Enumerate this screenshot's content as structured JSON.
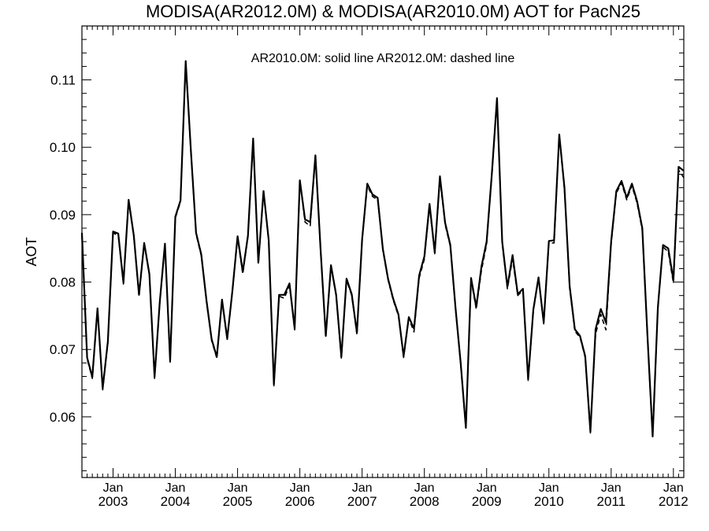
{
  "chart_data": {
    "type": "line",
    "title": "MODISA(AR2012.0M) & MODISA(AR2010.0M)  AOT for PacN25",
    "annotation": "AR2010.0M: solid line   AR2012.0M: dashed line",
    "xlabel": "",
    "ylabel": "AOT",
    "xlim": [
      "2002-07",
      "2012-03"
    ],
    "ylim": [
      0.051,
      0.118
    ],
    "yticks": [
      0.06,
      0.07,
      0.08,
      0.09,
      0.1,
      0.11
    ],
    "ytick_labels": [
      "0.06",
      "0.07",
      "0.08",
      "0.09",
      "0.10",
      "0.11"
    ],
    "xtick_month_label": "Jan",
    "xtick_years": [
      "2003",
      "2004",
      "2005",
      "2006",
      "2007",
      "2008",
      "2009",
      "2010",
      "2011",
      "2012"
    ],
    "grid": false,
    "x": [
      "2002-07",
      "2002-08",
      "2002-09",
      "2002-10",
      "2002-11",
      "2002-12",
      "2003-01",
      "2003-02",
      "2003-03",
      "2003-04",
      "2003-05",
      "2003-06",
      "2003-07",
      "2003-08",
      "2003-09",
      "2003-10",
      "2003-11",
      "2003-12",
      "2004-01",
      "2004-02",
      "2004-03",
      "2004-04",
      "2004-05",
      "2004-06",
      "2004-07",
      "2004-08",
      "2004-09",
      "2004-10",
      "2004-11",
      "2004-12",
      "2005-01",
      "2005-02",
      "2005-03",
      "2005-04",
      "2005-05",
      "2005-06",
      "2005-07",
      "2005-08",
      "2005-09",
      "2005-10",
      "2005-11",
      "2005-12",
      "2006-01",
      "2006-02",
      "2006-03",
      "2006-04",
      "2006-05",
      "2006-06",
      "2006-07",
      "2006-08",
      "2006-09",
      "2006-10",
      "2006-11",
      "2006-12",
      "2007-01",
      "2007-02",
      "2007-03",
      "2007-04",
      "2007-05",
      "2007-06",
      "2007-07",
      "2007-08",
      "2007-09",
      "2007-10",
      "2007-11",
      "2007-12",
      "2008-01",
      "2008-02",
      "2008-03",
      "2008-04",
      "2008-05",
      "2008-06",
      "2008-07",
      "2008-08",
      "2008-09",
      "2008-10",
      "2008-11",
      "2008-12",
      "2009-01",
      "2009-02",
      "2009-03",
      "2009-04",
      "2009-05",
      "2009-06",
      "2009-07",
      "2009-08",
      "2009-09",
      "2009-10",
      "2009-11",
      "2009-12",
      "2010-01",
      "2010-02",
      "2010-03",
      "2010-04",
      "2010-05",
      "2010-06",
      "2010-07",
      "2010-08",
      "2010-09",
      "2010-10",
      "2010-11",
      "2010-12",
      "2011-01",
      "2011-02",
      "2011-03",
      "2011-04",
      "2011-05",
      "2011-06",
      "2011-07",
      "2011-08",
      "2011-09",
      "2011-10",
      "2011-11",
      "2011-12",
      "2012-01",
      "2012-02",
      "2012-03"
    ],
    "series": [
      {
        "name": "AR2010.0M",
        "style": "solid",
        "color": "#000000",
        "values": [
          0.0873,
          0.0688,
          0.0659,
          0.0761,
          0.0642,
          0.0712,
          0.0875,
          0.0872,
          0.0799,
          0.0922,
          0.0869,
          0.0781,
          0.0858,
          0.0812,
          0.0659,
          0.077,
          0.0857,
          0.0683,
          0.0897,
          0.0921,
          0.1128,
          0.0995,
          0.0873,
          0.0841,
          0.0773,
          0.0715,
          0.0689,
          0.0774,
          0.0716,
          0.0787,
          0.0868,
          0.0815,
          0.0869,
          0.1013,
          0.0829,
          0.0935,
          0.0862,
          0.0648,
          0.0781,
          0.0781,
          0.0798,
          0.0731,
          0.0951,
          0.0893,
          0.0889,
          0.0988,
          0.0848,
          0.072,
          0.0825,
          0.0781,
          0.0689,
          0.0805,
          0.0782,
          0.0725,
          0.0863,
          0.0946,
          0.093,
          0.0925,
          0.0849,
          0.0805,
          0.0775,
          0.0752,
          0.069,
          0.0748,
          0.0731,
          0.081,
          0.0838,
          0.0916,
          0.0844,
          0.0957,
          0.0888,
          0.0855,
          0.0762,
          0.068,
          0.0584,
          0.0806,
          0.0763,
          0.0823,
          0.086,
          0.096,
          0.1073,
          0.086,
          0.0793,
          0.084,
          0.0782,
          0.079,
          0.0656,
          0.0759,
          0.0807,
          0.074,
          0.0861,
          0.0862,
          0.1019,
          0.094,
          0.0794,
          0.073,
          0.072,
          0.069,
          0.0578,
          0.073,
          0.076,
          0.074,
          0.086,
          0.0935,
          0.095,
          0.0925,
          0.0946,
          0.092,
          0.088,
          0.072,
          0.0571,
          0.0762,
          0.0855,
          0.085,
          0.0803,
          0.0971,
          0.0965
        ]
      },
      {
        "name": "AR2012.0M",
        "style": "dashed",
        "color": "#000000",
        "values": [
          0.087,
          0.0686,
          0.0657,
          0.0758,
          0.064,
          0.071,
          0.0873,
          0.0869,
          0.0797,
          0.092,
          0.0867,
          0.0779,
          0.0856,
          0.081,
          0.0657,
          0.0768,
          0.0855,
          0.0681,
          0.0895,
          0.0919,
          0.1126,
          0.0993,
          0.0871,
          0.0839,
          0.0771,
          0.0713,
          0.0687,
          0.0772,
          0.0714,
          0.0785,
          0.0866,
          0.0812,
          0.0867,
          0.1011,
          0.0826,
          0.0933,
          0.086,
          0.0646,
          0.0779,
          0.0776,
          0.0795,
          0.0729,
          0.0949,
          0.0889,
          0.0883,
          0.0986,
          0.0846,
          0.0718,
          0.0823,
          0.0779,
          0.0687,
          0.0803,
          0.078,
          0.0722,
          0.0861,
          0.0943,
          0.0927,
          0.0922,
          0.0847,
          0.0803,
          0.0773,
          0.075,
          0.0688,
          0.0746,
          0.0726,
          0.0806,
          0.0834,
          0.0912,
          0.0842,
          0.0954,
          0.0885,
          0.0853,
          0.076,
          0.0678,
          0.0582,
          0.0803,
          0.076,
          0.0817,
          0.0856,
          0.0957,
          0.1071,
          0.0857,
          0.079,
          0.0834,
          0.078,
          0.0788,
          0.0654,
          0.0757,
          0.0805,
          0.0738,
          0.0858,
          0.0858,
          0.1017,
          0.0937,
          0.0791,
          0.0727,
          0.0718,
          0.0688,
          0.0576,
          0.0723,
          0.0752,
          0.0729,
          0.0856,
          0.0932,
          0.0947,
          0.0922,
          0.0943,
          0.0917,
          0.0877,
          0.0718,
          0.0569,
          0.076,
          0.0852,
          0.0845,
          0.0798,
          0.0966,
          0.0955
        ]
      }
    ]
  }
}
